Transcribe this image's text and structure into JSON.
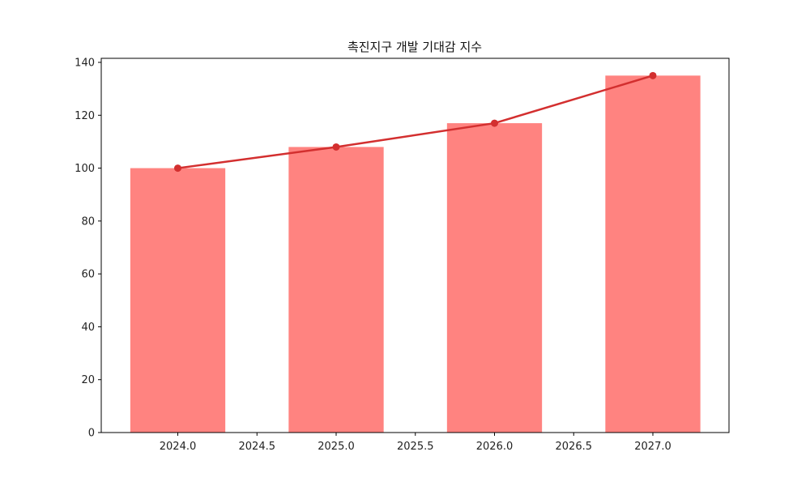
{
  "chart_data": {
    "type": "bar+line",
    "title": "촉진지구 개발 기대감 지수",
    "xlabel": "",
    "ylabel": "",
    "x": [
      2024,
      2025,
      2026,
      2027
    ],
    "series": [
      {
        "name": "bar",
        "kind": "bar",
        "values": [
          100,
          108,
          117,
          135
        ],
        "color": "#ff8380",
        "bar_width": 0.6
      },
      {
        "name": "line",
        "kind": "line",
        "values": [
          100,
          108,
          117,
          135
        ],
        "color": "#d32f2f",
        "marker": "circle"
      }
    ],
    "xlim": [
      2023.52,
      2027.48
    ],
    "ylim": [
      0,
      141.75
    ],
    "xticks": [
      "2024.0",
      "2024.5",
      "2025.0",
      "2025.5",
      "2026.0",
      "2026.5",
      "2027.0"
    ],
    "yticks": [
      "0",
      "20",
      "40",
      "60",
      "80",
      "100",
      "120",
      "140"
    ],
    "grid": false,
    "legend": null
  }
}
